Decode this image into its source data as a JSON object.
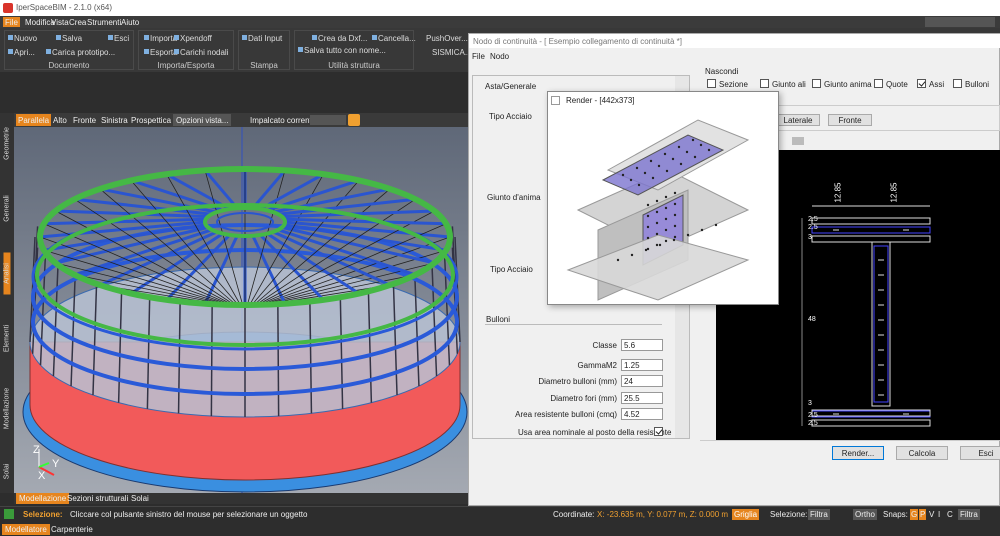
{
  "window": {
    "title": "IperSpaceBIM - 2.1.0 (x64)"
  },
  "menu": [
    "File",
    "Modifica",
    "Vista",
    "Crea",
    "Strumenti",
    "Aiuto"
  ],
  "ribbon": {
    "groups": [
      {
        "label": "Documento",
        "buttons": [
          "Nuovo",
          "Salva",
          "Esci",
          "Apri...",
          "Carica prototipo..."
        ]
      },
      {
        "label": "Importa/Esporta",
        "buttons": [
          "Importa",
          "Xpendoff",
          "Esporta",
          "Carichi nodali"
        ]
      },
      {
        "label": "Stampa",
        "buttons": [
          "Dati Input"
        ]
      },
      {
        "label": "Utilità struttura",
        "buttons": [
          "Crea da Dxf...",
          "Cancella...",
          "Salva tutto con nome..."
        ]
      }
    ],
    "extra_buttons": [
      "PushOver...",
      "SISMICA..."
    ]
  },
  "view_toolbar": {
    "views": [
      "Parallela",
      "Alto",
      "Fronte",
      "Sinistra",
      "Prospettica"
    ],
    "options": "Opzioni vista...",
    "floor_label": "Impalcato corrente:"
  },
  "side_tabs": [
    "Geometrie",
    "Generali",
    "Analisi",
    "Elementi",
    "Modellazione",
    "Solai"
  ],
  "bottom_tabs": [
    "Modellazione",
    "Sezioni strutturali",
    "Solai"
  ],
  "axes": {
    "z": "Z",
    "y": "Y",
    "x": "X"
  },
  "status": {
    "selection_label": "Selezione:",
    "selection_hint": "Cliccare col pulsante sinistro del mouse per selezionare un oggetto",
    "coord_label": "Coordinate:",
    "coords": "X: -23.635 m, Y: 0.077 m, Z: 0.000 m",
    "grid": "Griglia",
    "selection2": "Selezione:",
    "filter": "Filtra",
    "ortho": "Ortho",
    "snaps_label": "Snaps:",
    "snaps": [
      "G",
      "P",
      "V",
      "I",
      "C"
    ],
    "filter2": "Filtra"
  },
  "app_tabs": [
    "Modellatore",
    "Carpenterie"
  ],
  "dialog": {
    "title": "Nodo di continuità - [ Esempio collegamento di continuità *]",
    "menu": [
      "File",
      "Nodo"
    ],
    "panel": {
      "header": "Asta/Generale",
      "steel1": "Tipo Acciaio",
      "web_joint": "Giunto d'anima",
      "steel2": "Tipo Acciaio",
      "bolts": "Bulloni",
      "fields": [
        {
          "label": "Classe",
          "value": 5.6
        },
        {
          "label": "GammaM2",
          "value": 1.25
        },
        {
          "label": "Diametro bulloni (mm)",
          "value": 24
        },
        {
          "label": "Diametro fori (mm)",
          "value": 25.5
        },
        {
          "label": "Area resistente bulloni (cmq)",
          "value": 4.52
        }
      ],
      "nominal": {
        "label": "Usa area nominale al posto della resistente",
        "checked": true
      }
    },
    "hide": {
      "label": "Nascondi",
      "options": [
        {
          "label": "Sezione",
          "checked": false
        },
        {
          "label": "Giunto ali",
          "checked": false
        },
        {
          "label": "Giunto anima",
          "checked": false
        },
        {
          "label": "Quote",
          "checked": false
        },
        {
          "label": "Assi",
          "checked": true
        },
        {
          "label": "Bulloni",
          "checked": false
        }
      ]
    },
    "view_buttons": [
      "Laterale",
      "Fronte"
    ],
    "drawing": {
      "top_dims": [
        12.85,
        12.85
      ],
      "left_dims": [
        2.5,
        2.5,
        3,
        48,
        3,
        2.5,
        2.5
      ]
    },
    "buttons": [
      "Render...",
      "Calcola",
      "Esci"
    ]
  },
  "render": {
    "title": "Render - [442x373]"
  }
}
